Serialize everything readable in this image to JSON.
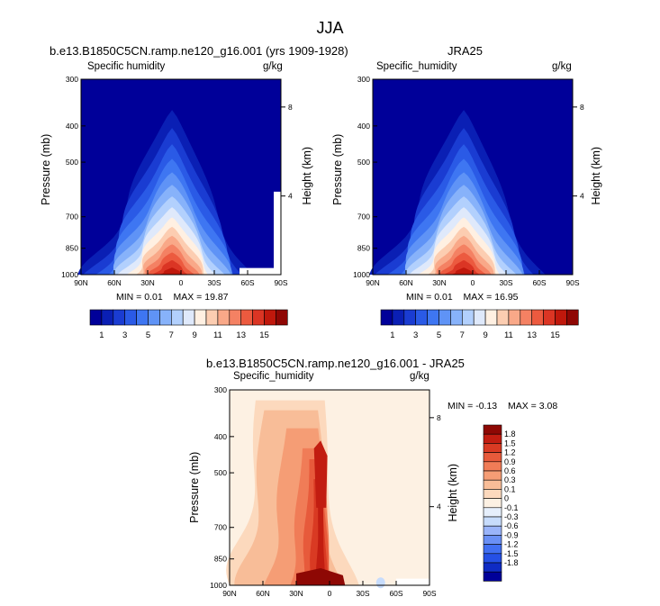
{
  "title": "JJA",
  "colors": {
    "abs_palette": [
      "#000099",
      "#0a1fb4",
      "#1a3cd2",
      "#2a5ae6",
      "#3e76f2",
      "#5f93f6",
      "#87b2fa",
      "#b2d0fd",
      "#dfe9fb",
      "#fff0e2",
      "#fccdb1",
      "#f9a888",
      "#f48163",
      "#ec5a3f",
      "#db3524",
      "#c0180c",
      "#8f0704"
    ],
    "diff_palette": [
      "#000099",
      "#0f2bc4",
      "#2550e6",
      "#416ff2",
      "#6a90f5",
      "#9ab4fa",
      "#c7dcfc",
      "#e6effc",
      "#fdf1e3",
      "#fcd9bd",
      "#f8bd98",
      "#f59d75",
      "#f07c57",
      "#e75a3b",
      "#d93a23",
      "#c21d11",
      "#8e0804"
    ],
    "white": "#ffffff"
  },
  "panels": [
    {
      "id": "model",
      "title": "b.e13.B1850C5CN.ramp.ne120_g16.001 (yrs 1909-1928)",
      "variable": "Specific humidity",
      "units": "g/kg",
      "ylabel": "Pressure (mb)",
      "ylabel_right": "Height (km)",
      "min_label": "MIN =",
      "min_value": "0.01",
      "max_label": "MAX =",
      "max_value": "19.87"
    },
    {
      "id": "obs",
      "title": "JRA25",
      "variable": "Specific_humidity",
      "units": "g/kg",
      "ylabel": "Pressure (mb)",
      "ylabel_right": "Height (km)",
      "min_label": "MIN =",
      "min_value": "0.01",
      "max_label": "MAX =",
      "max_value": "16.95"
    },
    {
      "id": "diff",
      "title": "b.e13.B1850C5CN.ramp.ne120_g16.001 - JRA25",
      "variable": "Specific_humidity",
      "units": "g/kg",
      "ylabel": "Pressure (mb)",
      "ylabel_right": "Height (km)",
      "min_label": "MIN =",
      "min_value": "-0.13",
      "max_label": "MAX =",
      "max_value": "3.08"
    }
  ],
  "x_ticks": [
    "90N",
    "60N",
    "30N",
    "0",
    "30S",
    "60S",
    "90S"
  ],
  "y_ticks": [
    "300",
    "400",
    "500",
    "700",
    "850",
    "1000"
  ],
  "height_ticks": [
    "8",
    "4"
  ],
  "abs_colorbar_labels": [
    "1",
    "3",
    "5",
    "7",
    "9",
    "11",
    "13",
    "15"
  ],
  "diff_colorbar_labels": [
    "1.8",
    "1.5",
    "1.2",
    "0.9",
    "0.6",
    "0.3",
    "0.1",
    "0",
    "-0.1",
    "-0.3",
    "-0.6",
    "-0.9",
    "-1.2",
    "-1.5",
    "-1.8"
  ],
  "chart_data": [
    {
      "type": "heatmap",
      "title": "b.e13.B1850C5CN.ramp.ne120_g16.001 (yrs 1909-1928)",
      "xlabel": "",
      "ylabel": "Pressure (mb)",
      "x": [
        90,
        60,
        30,
        0,
        -30,
        -60,
        -90
      ],
      "xlim": [
        90,
        -90
      ],
      "ylim": [
        1000,
        300
      ],
      "contour_levels": [
        1,
        2,
        3,
        4,
        5,
        6,
        7,
        8,
        9,
        10,
        11,
        12,
        13,
        14,
        15,
        16
      ],
      "peak_latitude": 8,
      "peak_max": 19.87,
      "min": 0.01,
      "max": 19.87,
      "units": "g/kg"
    },
    {
      "type": "heatmap",
      "title": "JRA25",
      "xlabel": "",
      "ylabel": "Pressure (mb)",
      "x": [
        90,
        60,
        30,
        0,
        -30,
        -60,
        -90
      ],
      "xlim": [
        90,
        -90
      ],
      "ylim": [
        1000,
        300
      ],
      "contour_levels": [
        1,
        2,
        3,
        4,
        5,
        6,
        7,
        8,
        9,
        10,
        11,
        12,
        13,
        14,
        15,
        16
      ],
      "peak_latitude": 8,
      "peak_max": 16.95,
      "min": 0.01,
      "max": 16.95,
      "units": "g/kg"
    },
    {
      "type": "heatmap",
      "title": "b.e13.B1850C5CN.ramp.ne120_g16.001 - JRA25",
      "xlabel": "",
      "ylabel": "Pressure (mb)",
      "x": [
        90,
        60,
        30,
        0,
        -30,
        -60,
        -90
      ],
      "xlim": [
        90,
        -90
      ],
      "ylim": [
        1000,
        300
      ],
      "contour_levels": [
        -1.8,
        -1.5,
        -1.2,
        -0.9,
        -0.6,
        -0.3,
        -0.1,
        0,
        0.1,
        0.3,
        0.6,
        0.9,
        1.2,
        1.5,
        1.8
      ],
      "min": -0.13,
      "max": 3.08,
      "units": "g/kg"
    }
  ]
}
